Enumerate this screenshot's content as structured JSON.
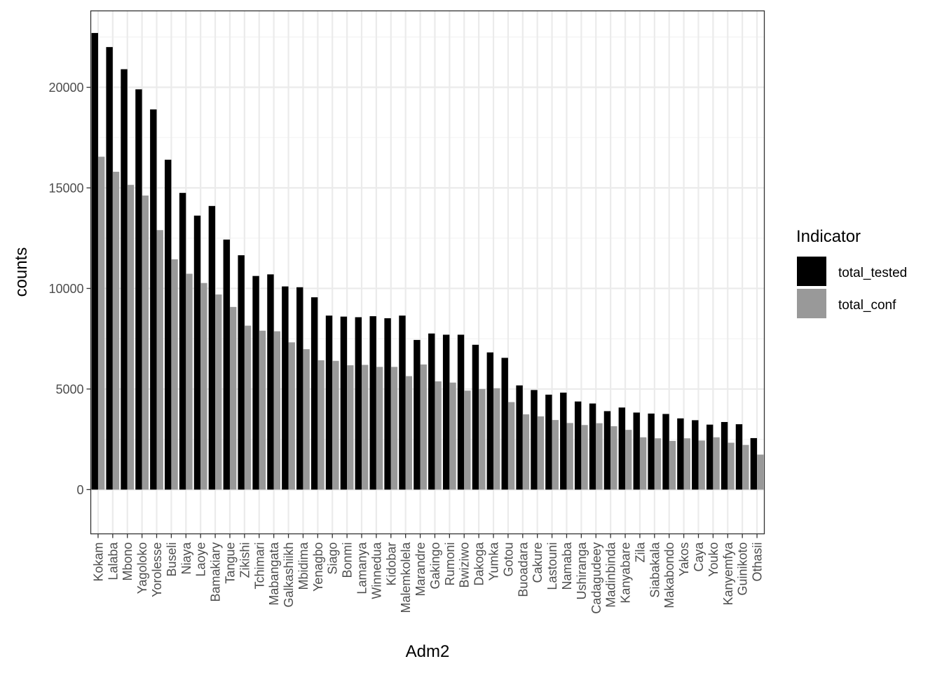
{
  "chart_data": {
    "type": "bar",
    "xlabel": "Adm2",
    "ylabel": "counts",
    "ylim": [
      -2200,
      23800
    ],
    "yticks": [
      0,
      5000,
      10000,
      15000,
      20000
    ],
    "grid": true,
    "legend": {
      "title": "Indicator",
      "placement": "right"
    },
    "categories": [
      "Kokam",
      "Lalaba",
      "Mbono",
      "Yagoloko",
      "Yorolesse",
      "Buseli",
      "Niaya",
      "Laoye",
      "Bamakiary",
      "Tangue",
      "Zikishi",
      "Tchimari",
      "Mabangata",
      "Galkashiikh",
      "Mbidima",
      "Yenagbo",
      "Siago",
      "Bonmi",
      "Lamanya",
      "Winnedua",
      "Kidobar",
      "Malemkolela",
      "Marandre",
      "Gakingo",
      "Rumoni",
      "Bwiziwo",
      "Dakoga",
      "Yumka",
      "Gotou",
      "Buoadara",
      "Cakure",
      "Lastouni",
      "Namaba",
      "Ushiranga",
      "Cadagudeey",
      "Madinbinda",
      "Kanyabare",
      "Zila",
      "Siabakala",
      "Makabondo",
      "Yakos",
      "Caya",
      "Youko",
      "Kanyemfya",
      "Guinikoto",
      "Othasii"
    ],
    "series": [
      {
        "name": "total_tested",
        "color": "#000000",
        "values": [
          22700,
          22000,
          20900,
          19900,
          18900,
          16400,
          14750,
          13620,
          14100,
          12430,
          11650,
          10620,
          10700,
          10100,
          10060,
          9560,
          8650,
          8600,
          8570,
          8620,
          8520,
          8650,
          7440,
          7760,
          7700,
          7700,
          7200,
          6820,
          6550,
          5180,
          4950,
          4720,
          4820,
          4380,
          4280,
          3900,
          4080,
          3830,
          3780,
          3760,
          3540,
          3450,
          3230,
          3360,
          3250,
          2560
        ]
      },
      {
        "name": "total_conf",
        "color": "#999999",
        "values": [
          16550,
          15800,
          15150,
          14620,
          12900,
          11450,
          10730,
          10270,
          9700,
          9080,
          8150,
          7900,
          7870,
          7320,
          6980,
          6430,
          6400,
          6180,
          6200,
          6100,
          6100,
          5640,
          6220,
          5380,
          5320,
          4920,
          5000,
          5040,
          4350,
          3740,
          3640,
          3460,
          3310,
          3210,
          3300,
          3150,
          2970,
          2600,
          2550,
          2420,
          2550,
          2440,
          2600,
          2330,
          2220,
          1740
        ]
      }
    ]
  }
}
